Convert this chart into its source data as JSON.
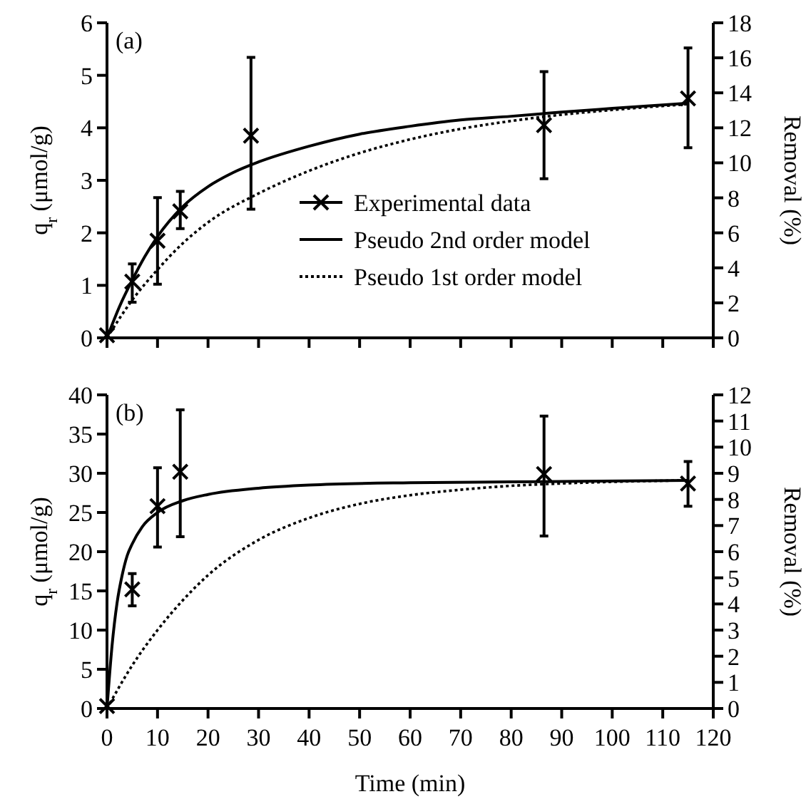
{
  "chart_data": [
    {
      "type": "line",
      "annotations": [
        "(a)"
      ],
      "ylabel": "q$_{r}$ (μmol/g)",
      "y2label": "Removal (%)",
      "xlim": [
        0,
        120
      ],
      "xticks": [
        {
          "value": 0,
          "label": null
        },
        {
          "value": 10,
          "label": null
        },
        {
          "value": 20,
          "label": null
        },
        {
          "value": 30,
          "label": null
        },
        {
          "value": 40,
          "label": null
        },
        {
          "value": 50,
          "label": null
        },
        {
          "value": 60,
          "label": null
        },
        {
          "value": 70,
          "label": null
        },
        {
          "value": 80,
          "label": null
        },
        {
          "value": 90,
          "label": null
        },
        {
          "value": 100,
          "label": null
        },
        {
          "value": 110,
          "label": null
        },
        {
          "value": 120,
          "label": null
        }
      ],
      "ylim": [
        0,
        6
      ],
      "yticks": [
        0,
        1,
        2,
        3,
        4,
        5,
        6
      ],
      "y2lim": [
        0,
        18
      ],
      "y2ticks": [
        0,
        2,
        4,
        6,
        8,
        10,
        12,
        14,
        16,
        18
      ],
      "tick_labels": "y",
      "legend": "bottom right",
      "grid": false,
      "series": [
        {
          "name": "Experimental data",
          "type": "scatter",
          "marker": "cross",
          "color": "#000000",
          "x": [
            0,
            5,
            10,
            14.5,
            28.5,
            86.5,
            115
          ],
          "values": [
            0.05,
            1.07,
            1.85,
            2.41,
            3.85,
            4.05,
            4.56
          ],
          "errors": [
            null,
            [
              0.68,
              1.41
            ],
            [
              1.02,
              2.67
            ],
            [
              2.08,
              2.79
            ],
            [
              2.45,
              5.34
            ],
            [
              3.03,
              5.07
            ],
            [
              3.62,
              5.52
            ]
          ]
        },
        {
          "name": "Pseudo 2nd order model",
          "type": "line",
          "line_style": "solid",
          "color": "#000000",
          "x": [
            0,
            2.5,
            5,
            7.5,
            10,
            15,
            20,
            25,
            30,
            40,
            50,
            60,
            70,
            80,
            90,
            100,
            115
          ],
          "values": [
            0,
            0.6,
            1.1,
            1.55,
            1.93,
            2.5,
            2.88,
            3.15,
            3.35,
            3.65,
            3.88,
            4.03,
            4.15,
            4.22,
            4.3,
            4.37,
            4.47
          ]
        },
        {
          "name": "Pseudo 1st order model",
          "type": "line",
          "line_style": "dotted",
          "color": "#000000",
          "x": [
            0,
            5,
            10,
            15,
            20,
            30,
            40,
            50,
            60,
            70,
            80,
            90,
            100,
            115
          ],
          "values": [
            0,
            0.72,
            1.3,
            1.8,
            2.2,
            2.75,
            3.18,
            3.52,
            3.78,
            3.98,
            4.13,
            4.25,
            4.34,
            4.45
          ]
        }
      ]
    },
    {
      "type": "line",
      "annotations": [
        "(b)"
      ],
      "xlabel": "Time (min)",
      "ylabel": "q$_{r}$ (μmol/g)",
      "y2label": "Removal (%)",
      "xlim": [
        0,
        120
      ],
      "xticks": [
        0,
        10,
        20,
        30,
        40,
        50,
        60,
        70,
        80,
        90,
        100,
        110,
        120
      ],
      "ylim": [
        0,
        40
      ],
      "yticks": [
        0,
        5,
        10,
        15,
        20,
        25,
        30,
        35,
        40
      ],
      "y2lim": [
        0,
        12
      ],
      "y2ticks": [
        0,
        1,
        2,
        3,
        4,
        5,
        6,
        7,
        8,
        9,
        10,
        11,
        12
      ],
      "legend": false,
      "grid": false,
      "series": [
        {
          "type": "scatter",
          "marker": "cross",
          "color": "#000000",
          "x": [
            0,
            5,
            10,
            14.5,
            86.5,
            115
          ],
          "values": [
            0.3,
            15.2,
            25.8,
            30.2,
            29.9,
            28.7
          ],
          "errors": [
            null,
            [
              13.1,
              17.2
            ],
            [
              20.6,
              30.7
            ],
            [
              21.9,
              38.1
            ],
            [
              22.0,
              37.3
            ],
            [
              25.8,
              31.5
            ]
          ]
        },
        {
          "type": "line",
          "line_style": "solid",
          "color": "#000000",
          "x": [
            0,
            1,
            2,
            3,
            4,
            5,
            7,
            10,
            15,
            20,
            30,
            40,
            60,
            80,
            115
          ],
          "values": [
            0,
            8,
            13.5,
            17,
            19.5,
            21,
            23.2,
            25,
            26.5,
            27.3,
            28.1,
            28.5,
            28.8,
            28.9,
            29.1
          ]
        },
        {
          "type": "line",
          "line_style": "dotted",
          "color": "#000000",
          "x": [
            0,
            5,
            10,
            15,
            20,
            30,
            40,
            50,
            60,
            70,
            80,
            90,
            115
          ],
          "values": [
            0,
            5.5,
            10,
            13.8,
            17,
            21.5,
            24.3,
            26.1,
            27.2,
            27.9,
            28.4,
            28.7,
            29.1
          ]
        }
      ]
    }
  ]
}
